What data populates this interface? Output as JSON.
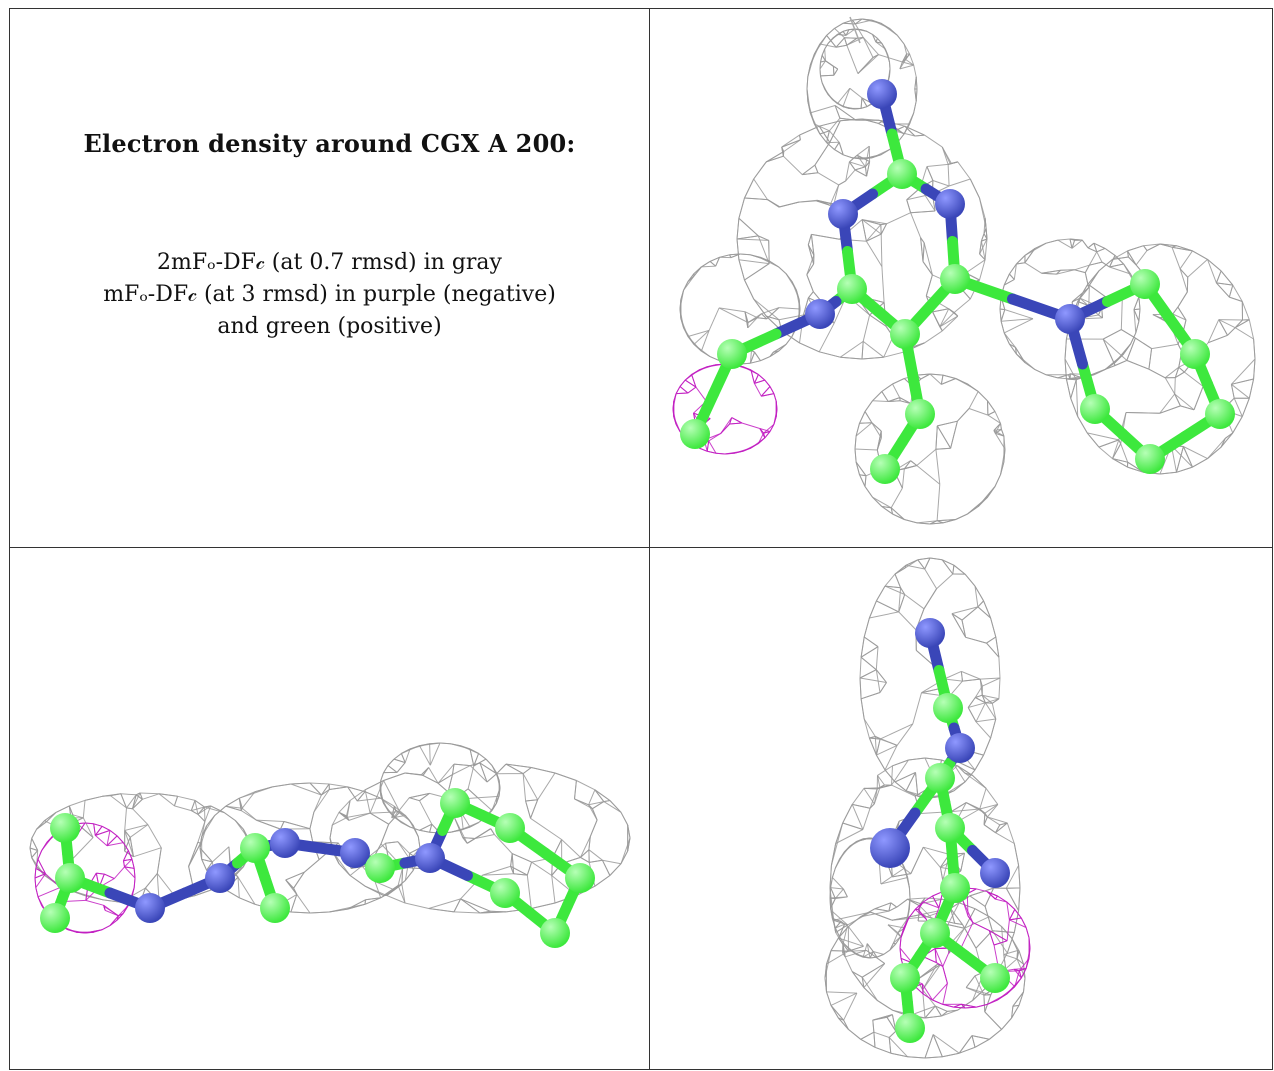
{
  "caption": {
    "title": "Electron density around CGX A 200:",
    "line1": "2mFₒ-DF𝒸 (at 0.7 rmsd) in gray",
    "line2": "mFₒ-DF𝒸 (at 3 rmsd) in purple (negative)",
    "line3": "and green (positive)"
  },
  "colors": {
    "mesh_2fofc": "#9a9a9a",
    "mesh_negative": "#c21fc2",
    "carbon": "#3de83d",
    "nitrogen": "#3a46b8",
    "border": "#333333"
  },
  "views": [
    {
      "name": "top-view",
      "icons": [
        "ligand-ball-and-stick",
        "density-mesh"
      ]
    },
    {
      "name": "side-view",
      "icons": [
        "ligand-ball-and-stick",
        "density-mesh"
      ]
    },
    {
      "name": "end-view",
      "icons": [
        "ligand-ball-and-stick",
        "density-mesh"
      ]
    }
  ]
}
